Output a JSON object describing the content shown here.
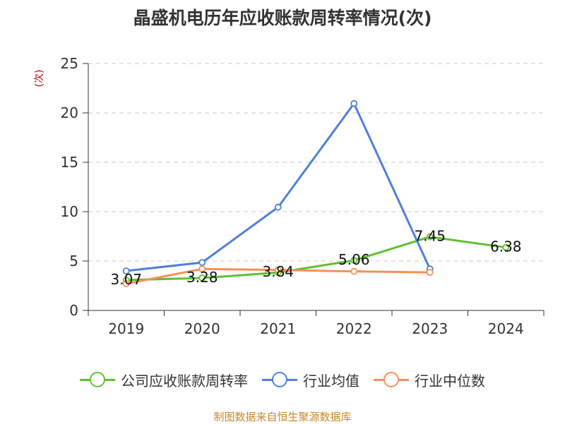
{
  "title": "晶盛机电历年应收账款周转率情况(次)",
  "source": "制图数据来自恒生聚源数据库",
  "chart_data": {
    "type": "line",
    "title": "晶盛机电历年应收账款周转率情况(次)",
    "ylabel": "(次)",
    "xlabel": "",
    "categories": [
      "2019",
      "2020",
      "2021",
      "2022",
      "2023",
      "2024"
    ],
    "ylim": [
      0,
      25
    ],
    "yticks": [
      0,
      5,
      10,
      15,
      20,
      25
    ],
    "grid": true,
    "legend_position": "bottom",
    "series": [
      {
        "name": "公司应收账款周转率",
        "color": "#5cc22e",
        "values": [
          3.07,
          3.28,
          3.84,
          5.06,
          7.45,
          6.38
        ],
        "value_labels": [
          "3.07",
          "3.28",
          "3.84",
          "5.06",
          "7.45",
          "6.38"
        ]
      },
      {
        "name": "行业均值",
        "color": "#4f7fdb",
        "values": [
          4.0,
          4.85,
          10.45,
          20.95,
          4.2,
          null
        ]
      },
      {
        "name": "行业中位数",
        "color": "#f59059",
        "values": [
          2.7,
          4.2,
          4.1,
          3.95,
          3.85,
          null
        ]
      }
    ]
  }
}
